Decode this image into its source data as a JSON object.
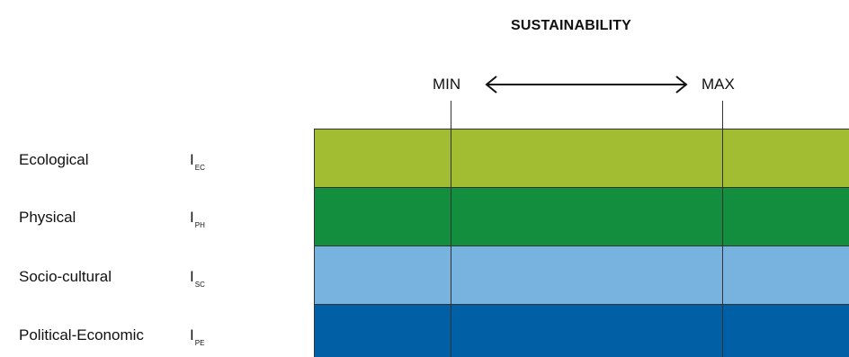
{
  "title": "SUSTAINABILITY",
  "scale": {
    "min_label": "MIN",
    "max_label": "MAX"
  },
  "rows": [
    {
      "label": "Ecological",
      "indicator": "I",
      "subscript": "EC",
      "color": "#a3bd32"
    },
    {
      "label": "Physical",
      "indicator": "I",
      "subscript": "PH",
      "color": "#138e3f"
    },
    {
      "label": "Socio-cultural",
      "indicator": "I",
      "subscript": "SC",
      "color": "#78b2df"
    },
    {
      "label": "Political-Economic",
      "indicator": "I",
      "subscript": "PE",
      "color": "#0160a5"
    }
  ]
}
